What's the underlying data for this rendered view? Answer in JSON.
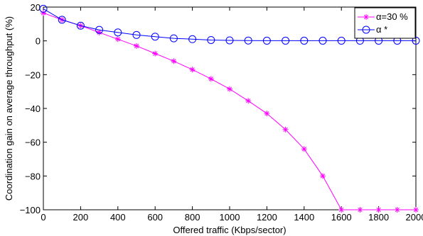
{
  "chart_data": {
    "type": "line",
    "title": "",
    "xlabel": "Offered traffic (Kbps/sector)",
    "ylabel": "Coordination gain on average throughput (%)",
    "xlim": [
      0,
      2000
    ],
    "ylim": [
      -100,
      20
    ],
    "xticks": [
      "0",
      "200",
      "400",
      "600",
      "800",
      "1000",
      "1200",
      "1400",
      "1600",
      "1800",
      "2000"
    ],
    "yticks": [
      "20",
      "0",
      "−20",
      "−40",
      "−60",
      "−80",
      "−100"
    ],
    "grid": false,
    "legend_position": "top-right",
    "x": [
      0,
      100,
      200,
      300,
      400,
      500,
      600,
      700,
      800,
      900,
      1000,
      1100,
      1200,
      1300,
      1400,
      1500,
      1600,
      1700,
      1800,
      1900,
      2000
    ],
    "series": [
      {
        "name": "α=30 %",
        "color": "#ff00ff",
        "marker": "asterisk",
        "values": [
          16.5,
          12.5,
          9,
          5,
          1,
          -3,
          -7.5,
          -12,
          -17,
          -22.5,
          -28.5,
          -35.5,
          -43,
          -52.5,
          -64,
          -80,
          -100,
          -100,
          -100,
          -100,
          -100
        ]
      },
      {
        "name": "α *",
        "color": "#0000ff",
        "marker": "circle",
        "values": [
          19,
          12.5,
          9,
          6.5,
          5,
          3.5,
          2.5,
          1.5,
          1,
          0.5,
          0.3,
          0.2,
          0.1,
          0.1,
          0.1,
          0.1,
          0.1,
          0.1,
          0.1,
          0.1,
          0.1
        ]
      }
    ]
  }
}
